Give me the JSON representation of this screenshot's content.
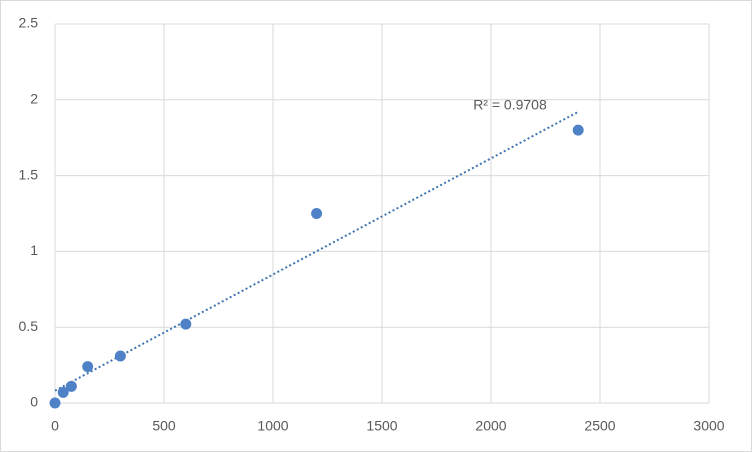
{
  "chart_data": {
    "type": "scatter",
    "x": [
      0,
      37.5,
      75,
      150,
      300,
      600,
      1200,
      2400
    ],
    "values": [
      0,
      0.07,
      0.11,
      0.24,
      0.31,
      0.52,
      1.25,
      1.8
    ],
    "color": "#4f81c7",
    "xlim": [
      0,
      3000
    ],
    "xticks": [
      0,
      500,
      1000,
      1500,
      2000,
      2500,
      3000
    ],
    "ylim": [
      0,
      2.5
    ],
    "yticks": [
      0,
      0.5,
      1,
      1.5,
      2,
      2.5
    ],
    "grid": true,
    "trendline": {
      "type": "linear",
      "label": "R² = 0.9708",
      "color": "#3f74b3"
    }
  }
}
